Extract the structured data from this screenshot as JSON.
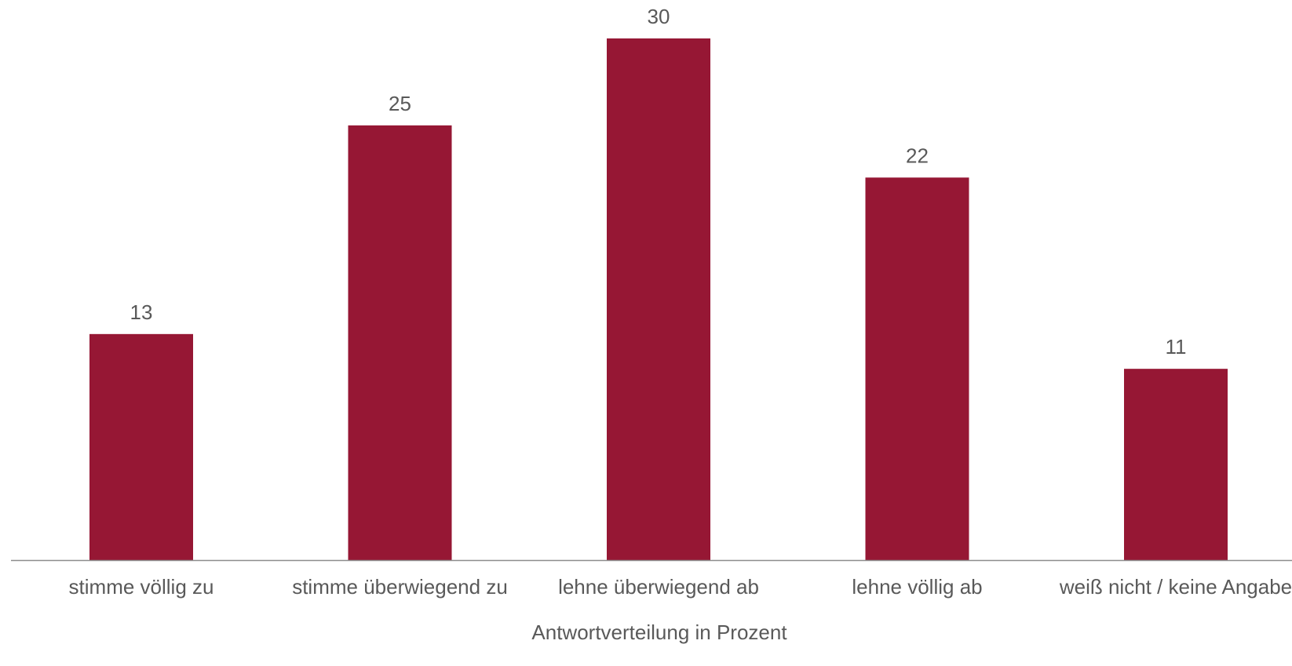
{
  "chart_data": {
    "type": "bar",
    "categories": [
      "stimme völlig zu",
      "stimme überwiegend zu",
      "lehne überwiegend ab",
      "lehne völlig ab",
      "weiß nicht / keine Angabe"
    ],
    "values": [
      13,
      25,
      30,
      22,
      11
    ],
    "title": "",
    "xlabel": "Antwortverteilung in Prozent",
    "ylabel": "",
    "ylim": [
      0,
      30
    ],
    "grid": false,
    "legend": "none",
    "data_labels": true,
    "colors": {
      "bar": "#961734",
      "axis": "#8c8c8c",
      "text": "#595959"
    }
  }
}
